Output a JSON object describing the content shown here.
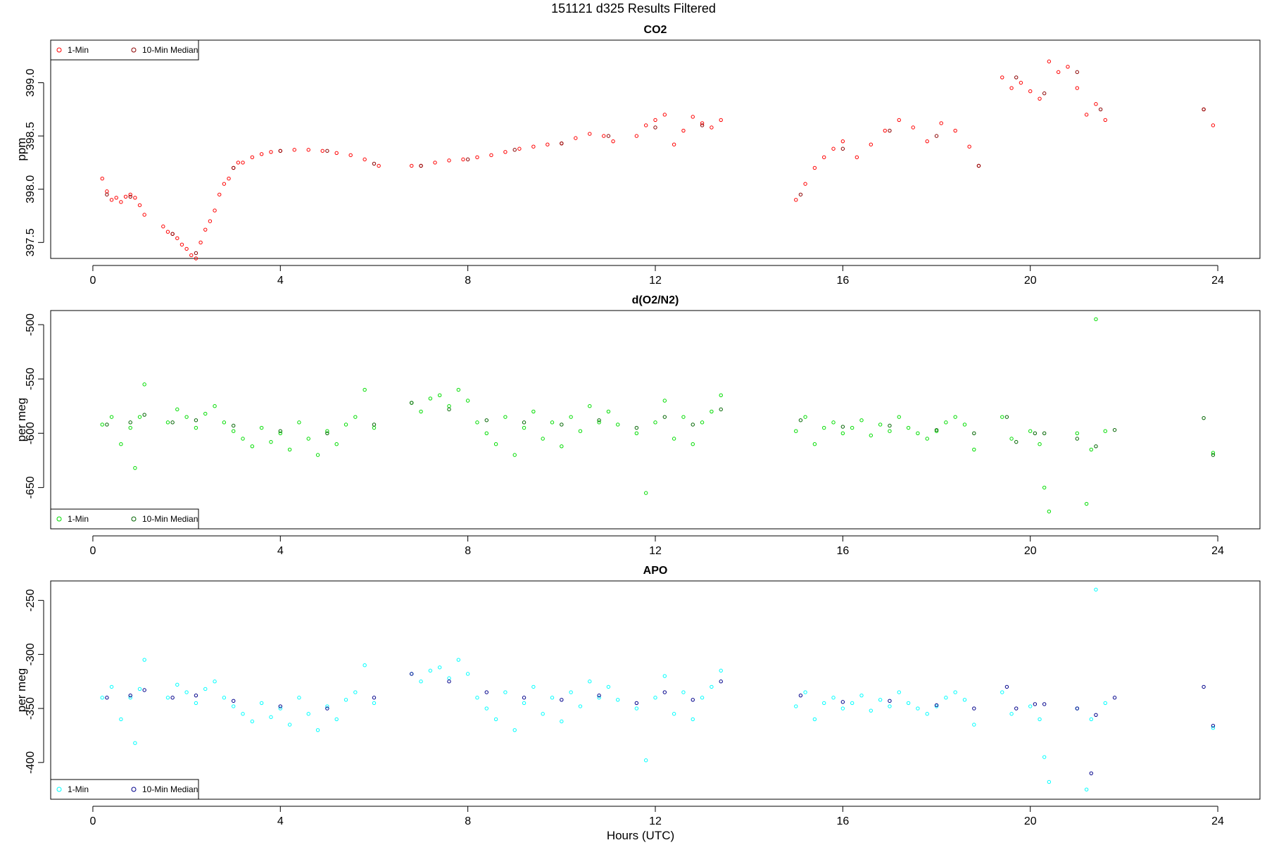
{
  "figure": {
    "title": "151121   d325   Results Filtered",
    "xlabel": "Hours (UTC)"
  },
  "chart_data": [
    {
      "type": "scatter",
      "title": "CO2",
      "ylabel": "ppm",
      "xlim": [
        -0.9,
        24.9
      ],
      "ylim": [
        397.35,
        399.4
      ],
      "x_ticks": [
        0,
        4,
        8,
        12,
        16,
        20,
        24
      ],
      "y_ticks": [
        397.5,
        398.0,
        398.5,
        399.0
      ],
      "y_tick_labels": [
        "397.5",
        "398.0",
        "398.5",
        "399.0"
      ],
      "legend": {
        "position": "top-left",
        "entries": [
          "1-Min",
          "10-Min Median"
        ]
      },
      "colors": {
        "one_min": "#ff0000",
        "median": "#8b0000"
      },
      "series": [
        {
          "name": "1-Min",
          "x": [
            0.2,
            0.3,
            0.4,
            0.5,
            0.6,
            0.7,
            0.8,
            0.9,
            1.0,
            1.1,
            1.5,
            1.6,
            1.7,
            1.8,
            1.9,
            2.0,
            2.1,
            2.2,
            2.3,
            2.4,
            2.5,
            2.6,
            2.7,
            2.8,
            2.9,
            3.0,
            3.1,
            3.2,
            3.4,
            3.6,
            3.8,
            4.0,
            4.3,
            4.6,
            4.9,
            5.2,
            5.5,
            5.8,
            6.1,
            6.8,
            7.0,
            7.3,
            7.6,
            7.9,
            8.2,
            8.5,
            8.8,
            9.1,
            9.4,
            9.7,
            10.0,
            10.3,
            10.6,
            10.9,
            11.1,
            11.6,
            11.8,
            12.0,
            12.2,
            12.4,
            12.6,
            12.8,
            13.0,
            13.2,
            13.4,
            15.0,
            15.2,
            15.4,
            15.6,
            15.8,
            16.0,
            16.3,
            16.6,
            16.9,
            17.2,
            17.5,
            17.8,
            18.1,
            18.4,
            18.7,
            18.9,
            19.4,
            19.6,
            19.8,
            20.0,
            20.2,
            20.4,
            20.6,
            20.8,
            21.0,
            21.2,
            21.4,
            21.6,
            23.7,
            23.9
          ],
          "y": [
            398.1,
            397.98,
            397.9,
            397.92,
            397.88,
            397.93,
            397.95,
            397.92,
            397.85,
            397.76,
            397.65,
            397.6,
            397.58,
            397.54,
            397.48,
            397.44,
            397.38,
            397.35,
            397.5,
            397.62,
            397.7,
            397.8,
            397.95,
            398.05,
            398.1,
            398.2,
            398.25,
            398.25,
            398.3,
            398.33,
            398.35,
            398.36,
            398.37,
            398.37,
            398.36,
            398.34,
            398.32,
            398.28,
            398.22,
            398.22,
            398.22,
            398.25,
            398.27,
            398.28,
            398.3,
            398.32,
            398.35,
            398.38,
            398.4,
            398.42,
            398.43,
            398.48,
            398.52,
            398.5,
            398.45,
            398.5,
            398.6,
            398.65,
            398.7,
            398.42,
            398.55,
            398.68,
            398.62,
            398.58,
            398.65,
            397.9,
            398.05,
            398.2,
            398.3,
            398.38,
            398.45,
            398.3,
            398.42,
            398.55,
            398.65,
            398.58,
            398.45,
            398.62,
            398.55,
            398.4,
            398.22,
            399.05,
            398.95,
            399.0,
            398.92,
            398.85,
            399.2,
            399.1,
            399.15,
            398.95,
            398.7,
            398.8,
            398.65,
            398.75,
            398.6
          ]
        },
        {
          "name": "10-Min Median",
          "x": [
            0.3,
            0.8,
            1.7,
            2.2,
            3.0,
            4.0,
            5.0,
            6.0,
            7.0,
            8.0,
            9.0,
            10.0,
            11.0,
            12.0,
            13.0,
            15.1,
            16.0,
            17.0,
            18.0,
            18.9,
            19.7,
            20.3,
            21.0,
            21.5,
            23.7
          ],
          "y": [
            397.95,
            397.93,
            397.58,
            397.4,
            398.2,
            398.36,
            398.36,
            398.24,
            398.22,
            398.28,
            398.37,
            398.43,
            398.5,
            398.58,
            398.6,
            397.95,
            398.38,
            398.55,
            398.5,
            398.22,
            399.05,
            398.9,
            399.1,
            398.75,
            398.75
          ]
        }
      ]
    },
    {
      "type": "scatter",
      "title": "d(O2/N2)",
      "ylabel": "per meg",
      "xlim": [
        -0.9,
        24.9
      ],
      "ylim": [
        -688,
        -487
      ],
      "x_ticks": [
        0,
        4,
        8,
        12,
        16,
        20,
        24
      ],
      "y_ticks": [
        -650,
        -600,
        -550,
        -500
      ],
      "y_tick_labels": [
        "-650",
        "-600",
        "-550",
        "-500"
      ],
      "legend": {
        "position": "bottom-left",
        "entries": [
          "1-Min",
          "10-Min Median"
        ]
      },
      "colors": {
        "one_min": "#00dd00",
        "median": "#006400"
      },
      "series": [
        {
          "name": "1-Min",
          "x": [
            0.2,
            0.4,
            0.6,
            0.8,
            0.9,
            1.0,
            1.1,
            1.6,
            1.8,
            2.0,
            2.2,
            2.4,
            2.6,
            2.8,
            3.0,
            3.2,
            3.4,
            3.6,
            3.8,
            4.0,
            4.2,
            4.4,
            4.6,
            4.8,
            5.0,
            5.2,
            5.4,
            5.6,
            5.8,
            6.0,
            6.8,
            7.0,
            7.2,
            7.4,
            7.6,
            7.8,
            8.0,
            8.2,
            8.4,
            8.6,
            8.8,
            9.0,
            9.2,
            9.4,
            9.6,
            9.8,
            10.0,
            10.2,
            10.4,
            10.6,
            10.8,
            11.0,
            11.2,
            11.6,
            11.8,
            12.0,
            12.2,
            12.4,
            12.6,
            12.8,
            13.0,
            13.2,
            13.4,
            15.0,
            15.2,
            15.4,
            15.6,
            15.8,
            16.0,
            16.2,
            16.4,
            16.6,
            16.8,
            17.0,
            17.2,
            17.4,
            17.6,
            17.8,
            18.0,
            18.2,
            18.4,
            18.6,
            18.8,
            19.4,
            19.6,
            20.0,
            20.2,
            20.3,
            20.4,
            21.0,
            21.2,
            21.3,
            21.4,
            21.6,
            23.9
          ],
          "y": [
            -592,
            -585,
            -610,
            -595,
            -632,
            -585,
            -555,
            -590,
            -578,
            -585,
            -595,
            -582,
            -575,
            -590,
            -598,
            -605,
            -612,
            -595,
            -608,
            -600,
            -615,
            -590,
            -605,
            -620,
            -598,
            -610,
            -592,
            -585,
            -560,
            -595,
            -572,
            -580,
            -568,
            -565,
            -575,
            -560,
            -570,
            -590,
            -600,
            -610,
            -585,
            -620,
            -595,
            -580,
            -605,
            -590,
            -612,
            -585,
            -598,
            -575,
            -590,
            -580,
            -592,
            -600,
            -655,
            -590,
            -570,
            -605,
            -585,
            -610,
            -590,
            -580,
            -565,
            -598,
            -585,
            -610,
            -595,
            -590,
            -600,
            -595,
            -588,
            -602,
            -592,
            -598,
            -585,
            -595,
            -600,
            -605,
            -598,
            -590,
            -585,
            -592,
            -615,
            -585,
            -605,
            -598,
            -610,
            -650,
            -672,
            -600,
            -665,
            -615,
            -495,
            -598,
            -618
          ]
        },
        {
          "name": "10-Min Median",
          "x": [
            0.3,
            0.8,
            1.1,
            1.7,
            2.2,
            3.0,
            4.0,
            5.0,
            6.0,
            6.8,
            7.6,
            8.4,
            9.2,
            10.0,
            10.8,
            11.6,
            12.2,
            12.8,
            13.4,
            15.1,
            16.0,
            17.0,
            18.0,
            18.8,
            19.5,
            19.7,
            20.1,
            20.3,
            21.0,
            21.4,
            21.8,
            23.7,
            23.9
          ],
          "y": [
            -592,
            -590,
            -583,
            -590,
            -588,
            -593,
            -598,
            -600,
            -592,
            -572,
            -578,
            -588,
            -590,
            -592,
            -588,
            -595,
            -585,
            -592,
            -578,
            -588,
            -594,
            -593,
            -597,
            -600,
            -585,
            -608,
            -600,
            -600,
            -605,
            -612,
            -597,
            -586,
            -620
          ]
        }
      ]
    },
    {
      "type": "scatter",
      "title": "APO",
      "ylabel": "per meg",
      "xlim": [
        -0.9,
        24.9
      ],
      "ylim": [
        -434,
        -232
      ],
      "x_ticks": [
        0,
        4,
        8,
        12,
        16,
        20,
        24
      ],
      "y_ticks": [
        -400,
        -350,
        -300,
        -250
      ],
      "y_tick_labels": [
        "-400",
        "-350",
        "-300",
        "-250"
      ],
      "legend": {
        "position": "bottom-left",
        "entries": [
          "1-Min",
          "10-Min Median"
        ]
      },
      "colors": {
        "one_min": "#00ffff",
        "median": "#00008b"
      },
      "series": [
        {
          "name": "1-Min",
          "x": [
            0.2,
            0.4,
            0.6,
            0.8,
            0.9,
            1.0,
            1.1,
            1.6,
            1.8,
            2.0,
            2.2,
            2.4,
            2.6,
            2.8,
            3.0,
            3.2,
            3.4,
            3.6,
            3.8,
            4.0,
            4.2,
            4.4,
            4.6,
            4.8,
            5.0,
            5.2,
            5.4,
            5.6,
            5.8,
            6.0,
            6.8,
            7.0,
            7.2,
            7.4,
            7.6,
            7.8,
            8.0,
            8.2,
            8.4,
            8.6,
            8.8,
            9.0,
            9.2,
            9.4,
            9.6,
            9.8,
            10.0,
            10.2,
            10.4,
            10.6,
            10.8,
            11.0,
            11.2,
            11.6,
            11.8,
            12.0,
            12.2,
            12.4,
            12.6,
            12.8,
            13.0,
            13.2,
            13.4,
            15.0,
            15.2,
            15.4,
            15.6,
            15.8,
            16.0,
            16.2,
            16.4,
            16.6,
            16.8,
            17.0,
            17.2,
            17.4,
            17.6,
            17.8,
            18.0,
            18.2,
            18.4,
            18.6,
            18.8,
            19.4,
            19.6,
            20.0,
            20.2,
            20.3,
            20.4,
            21.0,
            21.2,
            21.3,
            21.4,
            21.6,
            23.9
          ],
          "y": [
            -340,
            -330,
            -360,
            -340,
            -382,
            -332,
            -305,
            -340,
            -328,
            -335,
            -345,
            -332,
            -325,
            -340,
            -348,
            -355,
            -362,
            -345,
            -358,
            -350,
            -365,
            -340,
            -355,
            -370,
            -348,
            -360,
            -342,
            -335,
            -310,
            -345,
            -318,
            -325,
            -315,
            -312,
            -322,
            -305,
            -318,
            -340,
            -350,
            -360,
            -335,
            -370,
            -345,
            -330,
            -355,
            -340,
            -362,
            -335,
            -348,
            -325,
            -340,
            -330,
            -342,
            -350,
            -398,
            -340,
            -320,
            -355,
            -335,
            -360,
            -340,
            -330,
            -315,
            -348,
            -335,
            -360,
            -345,
            -340,
            -350,
            -345,
            -338,
            -352,
            -342,
            -348,
            -335,
            -345,
            -350,
            -355,
            -348,
            -340,
            -335,
            -342,
            -365,
            -335,
            -355,
            -348,
            -360,
            -395,
            -418,
            -350,
            -425,
            -360,
            -240,
            -345,
            -368
          ]
        },
        {
          "name": "10-Min Median",
          "x": [
            0.3,
            0.8,
            1.1,
            1.7,
            2.2,
            3.0,
            4.0,
            5.0,
            6.0,
            6.8,
            7.6,
            8.4,
            9.2,
            10.0,
            10.8,
            11.6,
            12.2,
            12.8,
            13.4,
            15.1,
            16.0,
            17.0,
            18.0,
            18.8,
            19.5,
            19.7,
            20.1,
            20.3,
            21.0,
            21.3,
            21.4,
            21.8,
            23.7,
            23.9
          ],
          "y": [
            -340,
            -338,
            -333,
            -340,
            -338,
            -343,
            -348,
            -350,
            -340,
            -318,
            -325,
            -335,
            -340,
            -342,
            -338,
            -345,
            -335,
            -342,
            -325,
            -338,
            -344,
            -343,
            -347,
            -350,
            -330,
            -350,
            -346,
            -346,
            -350,
            -410,
            -356,
            -340,
            -330,
            -366
          ]
        }
      ]
    }
  ]
}
